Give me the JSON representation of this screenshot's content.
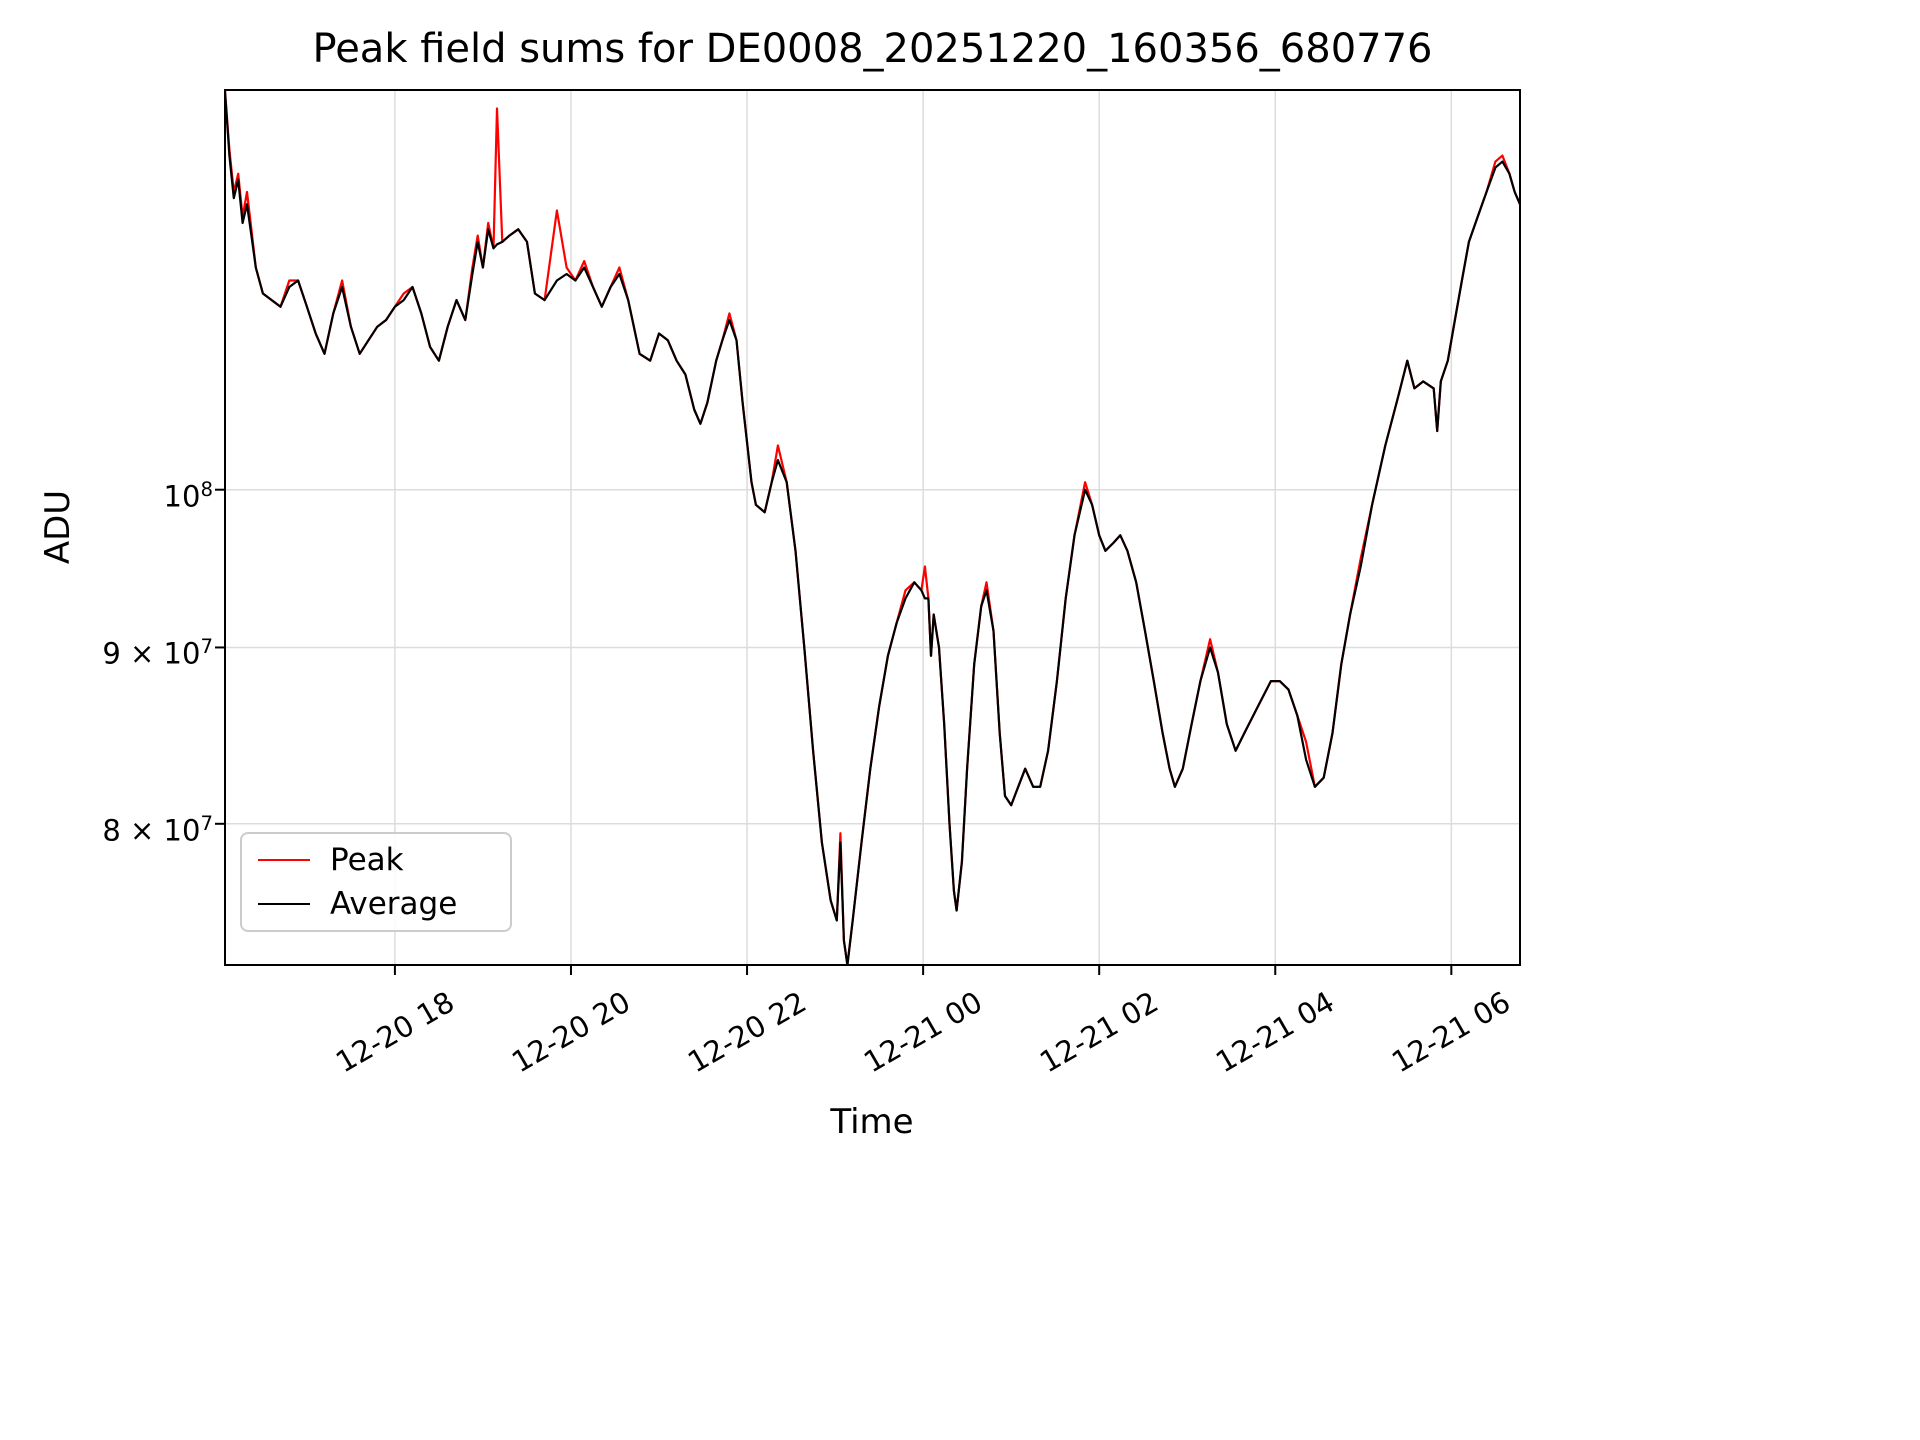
{
  "chart_data": {
    "type": "line",
    "title": "Peak field sums for DE0008_20251220_160356_680776",
    "xlabel": "Time",
    "ylabel": "ADU",
    "yscale": "log",
    "grid": true,
    "legend_position": "lower left",
    "colors": {
      "peak": "#ff0000",
      "average": "#000000",
      "grid": "#dcdcdc",
      "spine": "#000000"
    },
    "value_unit": 10000000,
    "ylim": [
      72800000,
      130600000
    ],
    "xlim_hours": [
      0.07,
      14.78
    ],
    "x_unit": "hours since 2025-12-20 16:00",
    "x_ticks": [
      {
        "t": 2,
        "label": "12-20 18"
      },
      {
        "t": 4,
        "label": "12-20 20"
      },
      {
        "t": 6,
        "label": "12-20 22"
      },
      {
        "t": 8,
        "label": "12-21 00"
      },
      {
        "t": 10,
        "label": "12-21 02"
      },
      {
        "t": 12,
        "label": "12-21 04"
      },
      {
        "t": 14,
        "label": "12-21 06"
      }
    ],
    "y_ticks": [
      {
        "v": 100000000,
        "prefix": "",
        "base": "10",
        "exp": "8"
      },
      {
        "v": 90000000,
        "prefix": "9 × ",
        "base": "10",
        "exp": "7"
      },
      {
        "v": 80000000,
        "prefix": "8 × ",
        "base": "10",
        "exp": "7"
      }
    ],
    "x": [
      0.07,
      0.12,
      0.17,
      0.22,
      0.27,
      0.32,
      0.37,
      0.42,
      0.5,
      0.6,
      0.7,
      0.8,
      0.9,
      1.0,
      1.1,
      1.2,
      1.3,
      1.4,
      1.5,
      1.6,
      1.7,
      1.8,
      1.9,
      2.0,
      2.1,
      2.2,
      2.3,
      2.4,
      2.5,
      2.6,
      2.7,
      2.8,
      2.88,
      2.94,
      3.0,
      3.06,
      3.12,
      3.16,
      3.22,
      3.3,
      3.4,
      3.5,
      3.59,
      3.7,
      3.84,
      3.95,
      4.05,
      4.15,
      4.25,
      4.35,
      4.45,
      4.55,
      4.65,
      4.78,
      4.9,
      5.0,
      5.1,
      5.2,
      5.3,
      5.4,
      5.47,
      5.55,
      5.65,
      5.72,
      5.8,
      5.88,
      5.95,
      6.05,
      6.1,
      6.2,
      6.28,
      6.35,
      6.45,
      6.55,
      6.65,
      6.75,
      6.85,
      6.95,
      7.02,
      7.06,
      7.1,
      7.14,
      7.2,
      7.3,
      7.4,
      7.5,
      7.6,
      7.7,
      7.8,
      7.9,
      7.98,
      8.02,
      8.06,
      8.09,
      8.12,
      8.18,
      8.24,
      8.3,
      8.35,
      8.38,
      8.44,
      8.5,
      8.58,
      8.66,
      8.72,
      8.8,
      8.87,
      8.93,
      9.0,
      9.08,
      9.16,
      9.25,
      9.33,
      9.42,
      9.52,
      9.62,
      9.72,
      9.84,
      9.92,
      10.0,
      10.07,
      10.16,
      10.24,
      10.32,
      10.42,
      10.52,
      10.62,
      10.72,
      10.8,
      10.86,
      10.95,
      11.05,
      11.15,
      11.26,
      11.35,
      11.45,
      11.55,
      11.65,
      11.75,
      11.85,
      11.95,
      12.05,
      12.15,
      12.25,
      12.35,
      12.45,
      12.55,
      12.65,
      12.75,
      12.85,
      12.97,
      13.1,
      13.25,
      13.4,
      13.5,
      13.58,
      13.68,
      13.8,
      13.84,
      13.88,
      13.96,
      14.04,
      14.12,
      14.2,
      14.3,
      14.4,
      14.5,
      14.58,
      14.66,
      14.72,
      14.78
    ],
    "series": [
      {
        "name": "Peak",
        "color": "#ff0000",
        "values": [
          13.05,
          12.55,
          12.2,
          12.35,
          12.0,
          12.2,
          11.9,
          11.6,
          11.4,
          11.35,
          11.3,
          11.5,
          11.5,
          11.3,
          11.1,
          10.95,
          11.25,
          11.5,
          11.15,
          10.95,
          11.05,
          11.15,
          11.2,
          11.3,
          11.4,
          11.45,
          11.25,
          11.0,
          10.9,
          11.15,
          11.35,
          11.2,
          11.6,
          11.85,
          11.6,
          11.95,
          11.75,
          12.9,
          11.8,
          11.85,
          11.9,
          11.8,
          11.4,
          11.35,
          12.05,
          11.6,
          11.5,
          11.65,
          11.45,
          11.3,
          11.45,
          11.6,
          11.35,
          10.95,
          10.9,
          11.1,
          11.05,
          10.9,
          10.8,
          10.55,
          10.45,
          10.6,
          10.9,
          11.05,
          11.25,
          11.05,
          10.6,
          10.05,
          9.9,
          9.85,
          10.05,
          10.3,
          10.05,
          9.6,
          9.0,
          8.4,
          7.9,
          7.6,
          7.5,
          7.95,
          7.4,
          7.28,
          7.5,
          7.9,
          8.3,
          8.65,
          8.95,
          9.15,
          9.35,
          9.4,
          9.35,
          9.5,
          9.3,
          8.95,
          9.2,
          9.0,
          8.55,
          8.0,
          7.65,
          7.55,
          7.8,
          8.3,
          8.9,
          9.25,
          9.4,
          9.1,
          8.5,
          8.15,
          8.1,
          8.2,
          8.3,
          8.2,
          8.2,
          8.4,
          8.8,
          9.3,
          9.7,
          10.05,
          9.9,
          9.7,
          9.6,
          9.65,
          9.7,
          9.6,
          9.4,
          9.1,
          8.8,
          8.5,
          8.3,
          8.2,
          8.3,
          8.55,
          8.8,
          9.05,
          8.85,
          8.55,
          8.4,
          8.5,
          8.6,
          8.7,
          8.8,
          8.8,
          8.75,
          8.6,
          8.45,
          8.2,
          8.25,
          8.5,
          8.9,
          9.2,
          9.55,
          9.9,
          10.3,
          10.65,
          10.9,
          10.7,
          10.75,
          10.7,
          10.4,
          10.75,
          10.9,
          11.2,
          11.5,
          11.8,
          12.0,
          12.2,
          12.45,
          12.5,
          12.35,
          12.2,
          12.1
        ]
      },
      {
        "name": "Average",
        "color": "#000000",
        "values": [
          13.05,
          12.5,
          12.15,
          12.3,
          11.95,
          12.1,
          11.85,
          11.6,
          11.4,
          11.35,
          11.3,
          11.45,
          11.5,
          11.3,
          11.1,
          10.95,
          11.25,
          11.45,
          11.15,
          10.95,
          11.05,
          11.15,
          11.2,
          11.3,
          11.35,
          11.45,
          11.25,
          11.0,
          10.9,
          11.15,
          11.35,
          11.2,
          11.55,
          11.8,
          11.6,
          11.9,
          11.75,
          11.78,
          11.8,
          11.85,
          11.9,
          11.8,
          11.4,
          11.35,
          11.5,
          11.55,
          11.5,
          11.6,
          11.45,
          11.3,
          11.45,
          11.55,
          11.35,
          10.95,
          10.9,
          11.1,
          11.05,
          10.9,
          10.8,
          10.55,
          10.45,
          10.6,
          10.9,
          11.05,
          11.2,
          11.05,
          10.6,
          10.05,
          9.9,
          9.85,
          10.05,
          10.2,
          10.05,
          9.6,
          9.0,
          8.4,
          7.9,
          7.6,
          7.5,
          7.9,
          7.4,
          7.28,
          7.5,
          7.9,
          8.3,
          8.65,
          8.95,
          9.15,
          9.3,
          9.4,
          9.35,
          9.3,
          9.3,
          8.95,
          9.2,
          9.0,
          8.55,
          8.0,
          7.65,
          7.55,
          7.8,
          8.3,
          8.9,
          9.25,
          9.35,
          9.1,
          8.5,
          8.15,
          8.1,
          8.2,
          8.3,
          8.2,
          8.2,
          8.4,
          8.8,
          9.3,
          9.7,
          10.0,
          9.9,
          9.7,
          9.6,
          9.65,
          9.7,
          9.6,
          9.4,
          9.1,
          8.8,
          8.5,
          8.3,
          8.2,
          8.3,
          8.55,
          8.8,
          9.0,
          8.85,
          8.55,
          8.4,
          8.5,
          8.6,
          8.7,
          8.8,
          8.8,
          8.75,
          8.6,
          8.35,
          8.2,
          8.25,
          8.5,
          8.9,
          9.2,
          9.5,
          9.9,
          10.3,
          10.65,
          10.9,
          10.7,
          10.75,
          10.7,
          10.4,
          10.75,
          10.9,
          11.2,
          11.5,
          11.8,
          12.0,
          12.2,
          12.4,
          12.45,
          12.35,
          12.2,
          12.1
        ]
      }
    ]
  }
}
